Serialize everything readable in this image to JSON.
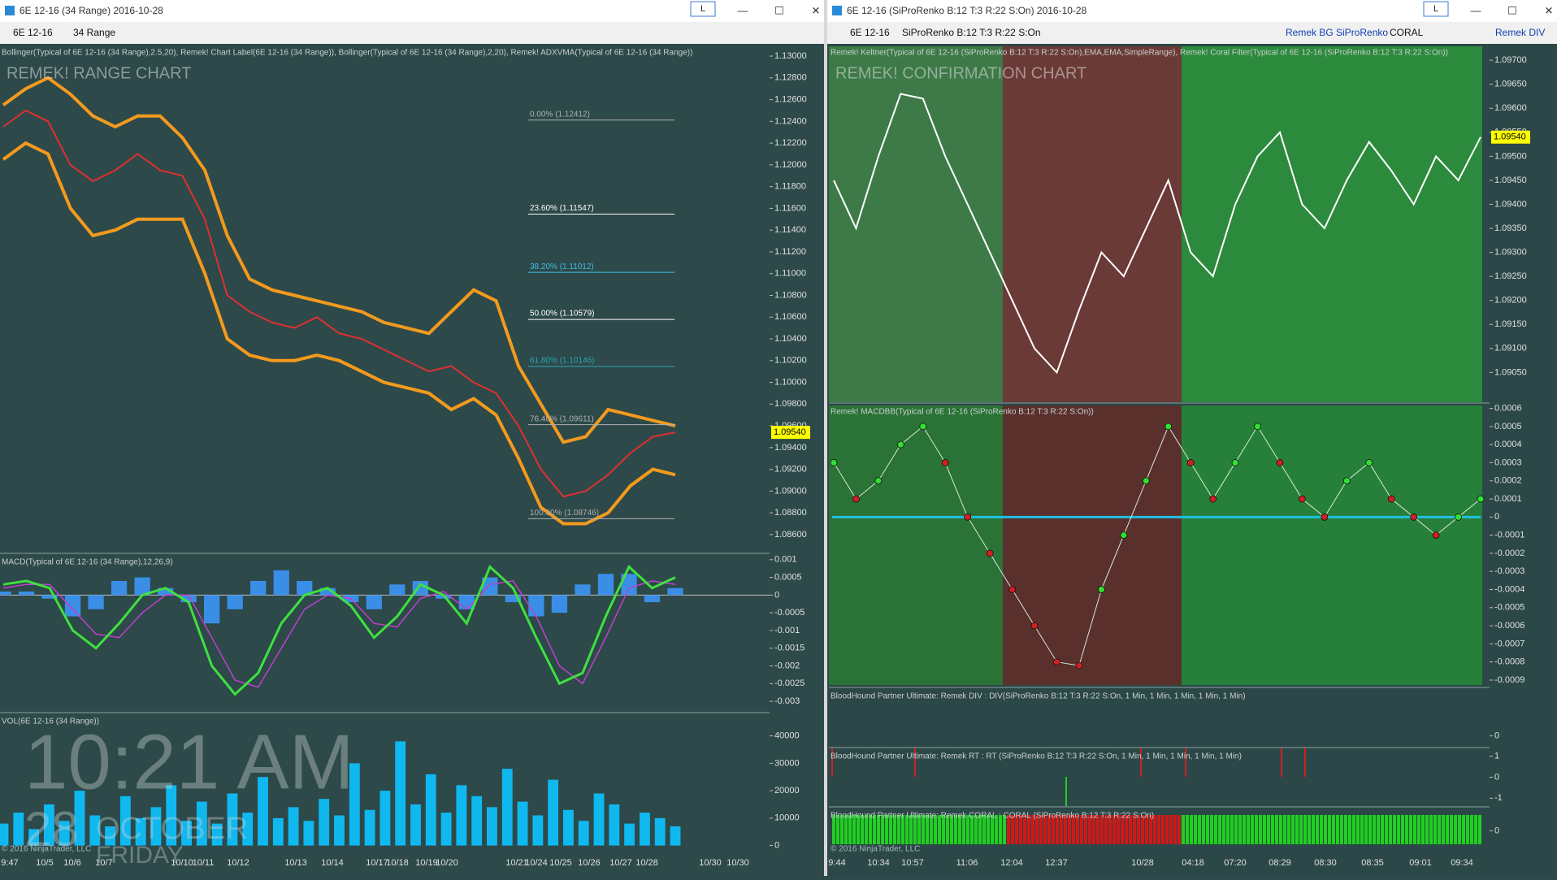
{
  "windows": [
    {
      "title": "6E 12-16 (34 Range)  2016-10-28",
      "button": "L",
      "toolbar": [
        "6E 12-16",
        "34 Range"
      ],
      "chart_label": "REMEK! RANGE CHART",
      "price_tag": {
        "value": 1.0954,
        "label": "1.09540"
      },
      "fib": [
        {
          "value": 1.12412,
          "label": "0.00% (1.12412)",
          "color": "#b0b0b0"
        },
        {
          "value": 1.11547,
          "label": "23.60% (1.11547)",
          "color": "#ffffff"
        },
        {
          "value": 1.11012,
          "label": "38.20% (1.11012)",
          "color": "#40c0e0"
        },
        {
          "value": 1.10579,
          "label": "50.00% (1.10579)",
          "color": "#ffffff"
        },
        {
          "value": 1.10146,
          "label": "61.80% (1.10146)",
          "color": "#2aa6b8"
        },
        {
          "value": 1.09611,
          "label": "76.40% (1.09611)",
          "color": "#b0b0b0"
        },
        {
          "value": 1.08746,
          "label": "100.00% (1.08746)",
          "color": "#b0b0b0"
        }
      ],
      "panels": [
        {
          "header": "Bollinger(Typical of 6E 12-16 (34 Range),2.5,20), Remek! Chart Label(6E 12-16 (34 Range)), Bollinger(Typical of 6E 12-16 (34 Range),2,20), Remek! ADXVMA(Typical of 6E 12-16 (34 Range))",
          "ylim": [
            1.0845,
            1.1309
          ],
          "yticks": [
            {
              "value": 1.13,
              "label": "1.13000"
            },
            {
              "value": 1.128,
              "label": "1.12800"
            },
            {
              "value": 1.126,
              "label": "1.12600"
            },
            {
              "value": 1.124,
              "label": "1.12400"
            },
            {
              "value": 1.122,
              "label": "1.12200"
            },
            {
              "value": 1.12,
              "label": "1.12000"
            },
            {
              "value": 1.118,
              "label": "1.11800"
            },
            {
              "value": 1.116,
              "label": "1.11600"
            },
            {
              "value": 1.114,
              "label": "1.11400"
            },
            {
              "value": 1.112,
              "label": "1.11200"
            },
            {
              "value": 1.11,
              "label": "1.11000"
            },
            {
              "value": 1.108,
              "label": "1.10800"
            },
            {
              "value": 1.106,
              "label": "1.10600"
            },
            {
              "value": 1.104,
              "label": "1.10400"
            },
            {
              "value": 1.102,
              "label": "1.10200"
            },
            {
              "value": 1.1,
              "label": "1.10000"
            },
            {
              "value": 1.098,
              "label": "1.09800"
            },
            {
              "value": 1.096,
              "label": "1.09600"
            },
            {
              "value": 1.094,
              "label": "1.09400"
            },
            {
              "value": 1.092,
              "label": "1.09200"
            },
            {
              "value": 1.09,
              "label": "1.09000"
            },
            {
              "value": 1.088,
              "label": "1.08800"
            },
            {
              "value": 1.086,
              "label": "1.08600"
            }
          ],
          "series": [
            {
              "kind": "line",
              "color": "#f39a1e",
              "width": 4,
              "values": [
                1.1255,
                1.127,
                1.128,
                1.1265,
                1.1245,
                1.1235,
                1.1245,
                1.1245,
                1.1225,
                1.1195,
                1.1135,
                1.1095,
                1.1085,
                1.108,
                1.1075,
                1.107,
                1.1065,
                1.1055,
                1.105,
                1.1045,
                1.1065,
                1.1085,
                1.1075,
                1.1015,
                1.098,
                1.0945,
                1.095,
                1.0975,
                1.097,
                1.0965,
                1.096
              ]
            },
            {
              "kind": "line",
              "color": "#f39a1e",
              "width": 4,
              "values": [
                1.1205,
                1.122,
                1.121,
                1.116,
                1.1135,
                1.114,
                1.115,
                1.115,
                1.115,
                1.11,
                1.104,
                1.1025,
                1.102,
                1.102,
                1.1025,
                1.102,
                1.101,
                1.1,
                1.0995,
                1.099,
                1.0975,
                1.0985,
                1.097,
                1.093,
                1.0885,
                1.087,
                1.087,
                1.088,
                1.0905,
                1.092,
                1.0915
              ]
            },
            {
              "kind": "line",
              "color": "#e03030",
              "width": 2,
              "values": [
                1.1235,
                1.125,
                1.124,
                1.12,
                1.1185,
                1.1195,
                1.121,
                1.1195,
                1.119,
                1.115,
                1.108,
                1.1065,
                1.1055,
                1.105,
                1.106,
                1.1045,
                1.104,
                1.103,
                1.102,
                1.101,
                1.1015,
                1.1,
                1.099,
                1.096,
                1.092,
                1.0895,
                1.09,
                1.0915,
                1.0935,
                1.095,
                1.0954
              ]
            }
          ]
        },
        {
          "header": "MACD(Typical of 6E 12-16 (34 Range),12,26,9)",
          "ylim": [
            -0.00325,
            0.00111
          ],
          "yticks": [
            0.001,
            0.0005,
            0,
            -0.0005,
            -0.001,
            -0.0015,
            -0.002,
            -0.0025,
            -0.003
          ],
          "zero_line": true,
          "series": [
            {
              "kind": "bars",
              "color": "#3a8ee6",
              "values": [
                0.0001,
                0.0001,
                -0.0001,
                -0.0006,
                -0.0004,
                0.0004,
                0.0005,
                0.0002,
                -0.0002,
                -0.0008,
                -0.0004,
                0.0004,
                0.0007,
                0.0004,
                0.0002,
                -0.0002,
                -0.0004,
                0.0003,
                0.0004,
                -0.0001,
                -0.0004,
                0.0005,
                -0.0002,
                -0.0006,
                -0.0005,
                0.0003,
                0.0006,
                0.0006,
                -0.0002,
                0.0002
              ]
            },
            {
              "kind": "line",
              "color": "#c040d0",
              "width": 1.5,
              "values": [
                0.0002,
                0.0003,
                0.0003,
                -0.0004,
                -0.0011,
                -0.0012,
                -0.0005,
                0,
                0,
                -0.0012,
                -0.0024,
                -0.0026,
                -0.0015,
                -0.0004,
                0,
                -0.0001,
                -0.0008,
                -0.0009,
                -0.0001,
                0.0001,
                -0.0004,
                0.0003,
                0.0004,
                -0.0006,
                -0.002,
                -0.0025,
                -0.0012,
                0.0002,
                0.0004,
                0.0003
              ]
            },
            {
              "kind": "line",
              "color": "#3fe040",
              "width": 3,
              "values": [
                0.0003,
                0.0004,
                0.0002,
                -0.001,
                -0.0015,
                -0.0008,
                0,
                0.0002,
                -0.0002,
                -0.002,
                -0.0028,
                -0.0022,
                -0.0008,
                0,
                0.0002,
                -0.0003,
                -0.0012,
                -0.0006,
                0.0003,
                0,
                -0.0008,
                0.0008,
                0.0002,
                -0.0012,
                -0.0025,
                -0.0022,
                -0.0006,
                0.0008,
                0.0002,
                0.0005
              ]
            }
          ]
        },
        {
          "header": "VOL(6E 12-16 (34 Range))",
          "ylim": [
            -2500,
            47600
          ],
          "yticks": [
            40000,
            30000,
            20000,
            10000,
            0
          ],
          "series": [
            {
              "kind": "bars",
              "color": "#10b8f0",
              "values": [
                8000,
                12000,
                6000,
                15000,
                9000,
                20000,
                11000,
                7000,
                18000,
                10000,
                14000,
                22000,
                9000,
                16000,
                8000,
                19000,
                12000,
                25000,
                10000,
                14000,
                9000,
                17000,
                11000,
                30000,
                13000,
                20000,
                38000,
                15000,
                26000,
                12000,
                22000,
                18000,
                14000,
                28000,
                16000,
                11000,
                24000,
                13000,
                9000,
                19000,
                15000,
                8000,
                12000,
                10000,
                7000
              ]
            }
          ]
        }
      ],
      "x_labels": [
        "9:47",
        "10/5",
        "10/6",
        "10/7",
        "10/10",
        "10/11",
        "10/12",
        "10/13",
        "10/14",
        "10/17",
        "10/18",
        "10/19",
        "10/20",
        "10/21",
        "10/24",
        "10/25",
        "10/26",
        "10/27",
        "10/28",
        "10/30",
        "10/30"
      ],
      "copyright": "© 2016 NinjaTrader, LLC"
    },
    {
      "title": "6E 12-16 (SiProRenko B:12 T:3 R:22 S:On)  2016-10-28",
      "button": "L",
      "toolbar": [
        "6E 12-16",
        "SiProRenko B:12 T:3 R:22 S:On",
        "Remek BG SiProRenko",
        "CORAL",
        "Remek DIV"
      ],
      "chart_label": "REMEK! CONFIRMATION CHART",
      "price_tag": {
        "value": 1.0954,
        "label": "1.09540"
      },
      "panels": [
        {
          "header": "Remek! Keltner(Typical of 6E 12-16 (SiProRenko B:12 T:3 R:22 S:On),EMA,EMA,SimpleRange), Remek! Coral Filter(Typical of 6E 12-16 (SiProRenko B:12 T:3 R:22 S:On))",
          "ylim": [
            1.08988,
            1.09729
          ],
          "yticks": [
            {
              "value": 1.097,
              "label": "1.09700"
            },
            {
              "value": 1.0965,
              "label": "1.09650"
            },
            {
              "value": 1.096,
              "label": "1.09600"
            },
            {
              "value": 1.0955,
              "label": "1.09550"
            },
            {
              "value": 1.095,
              "label": "1.09500"
            },
            {
              "value": 1.0945,
              "label": "1.09450"
            },
            {
              "value": 1.094,
              "label": "1.09400"
            },
            {
              "value": 1.0935,
              "label": "1.09350"
            },
            {
              "value": 1.093,
              "label": "1.09300"
            },
            {
              "value": 1.0925,
              "label": "1.09250"
            },
            {
              "value": 1.092,
              "label": "1.09200"
            },
            {
              "value": 1.0915,
              "label": "1.09150"
            },
            {
              "value": 1.091,
              "label": "1.09100"
            },
            {
              "value": 1.0905,
              "label": "1.09050"
            }
          ],
          "series": [
            {
              "kind": "line",
              "color": "#ffffff",
              "width": 2,
              "values": [
                1.0945,
                1.0935,
                1.095,
                1.0963,
                1.0962,
                1.095,
                1.094,
                1.093,
                1.092,
                1.091,
                1.0905,
                1.0918,
                1.093,
                1.0925,
                1.0935,
                1.0945,
                1.093,
                1.0925,
                1.094,
                1.095,
                1.0955,
                1.094,
                1.0935,
                1.0945,
                1.0953,
                1.0947,
                1.094,
                1.095,
                1.0945,
                1.0954
              ]
            }
          ]
        },
        {
          "header": "Remek! MACDBB(Typical of 6E 12-16 (SiProRenko B:12 T:3 R:22 S:On))",
          "ylim": [
            -0.000927,
            0.000616
          ],
          "yticks": [
            0.0006,
            0.0005,
            0.0004,
            0.0003,
            0.0002,
            0.0001,
            0,
            -0.0001,
            -0.0002,
            -0.0003,
            -0.0004,
            -0.0005,
            -0.0006,
            -0.0007,
            -0.0008,
            -0.0009
          ],
          "series": [
            {
              "kind": "dots",
              "color": "#30e030",
              "values": [
                0.0003,
                0.0001,
                0.0002,
                0.0004,
                0.0005,
                0.0003,
                0,
                -0.0002,
                -0.0004,
                -0.0006,
                -0.0008,
                -0.00082,
                -0.0004,
                -0.0001,
                0.0002,
                0.0005,
                0.0003,
                0.0001,
                0.0003,
                0.0005,
                0.0003,
                0.0001,
                0,
                0.0002,
                0.0003,
                0.0001,
                0,
                -0.0001,
                0,
                0.0001
              ]
            }
          ]
        },
        {
          "header": "BloodHound Partner Ultimate: Remek DIV : DIV(SiProRenko B:12 T:3 R:22 S:On, 1 Min, 1 Min, 1 Min, 1 Min, 1 Min)",
          "ylim": [
            -0.2,
            1
          ],
          "yticks": [
            0
          ],
          "series": []
        },
        {
          "header": "BloodHound Partner Ultimate: Remek RT : RT (SiProRenko B:12 T:3 R:22 S:On, 1 Min, 1 Min, 1 Min, 1 Min, 1 Min)",
          "ylim": [
            -1.3,
            1.3
          ],
          "yticks": [
            1,
            0,
            -1
          ],
          "series": []
        },
        {
          "header": "BloodHound Partner Ultimate: Remek CORAL : CORAL (SiProRenko B:12 T:3 R:22 S:On)",
          "ylim": [
            -1,
            1
          ],
          "yticks": [
            0
          ],
          "series": []
        }
      ],
      "x_labels": [
        "9:44",
        "10:34",
        "10:57",
        "11:06",
        "12:04",
        "12:37",
        "10/28",
        "04:18",
        "07:20",
        "08:29",
        "08:30",
        "08:35",
        "09:01",
        "09:34"
      ],
      "copyright": "© 2016 NinjaTrader, LLC"
    }
  ],
  "clock": {
    "time": "10:21 AM",
    "day": "28",
    "month": "OCTOBER",
    "weekday": "FRIDAY"
  }
}
